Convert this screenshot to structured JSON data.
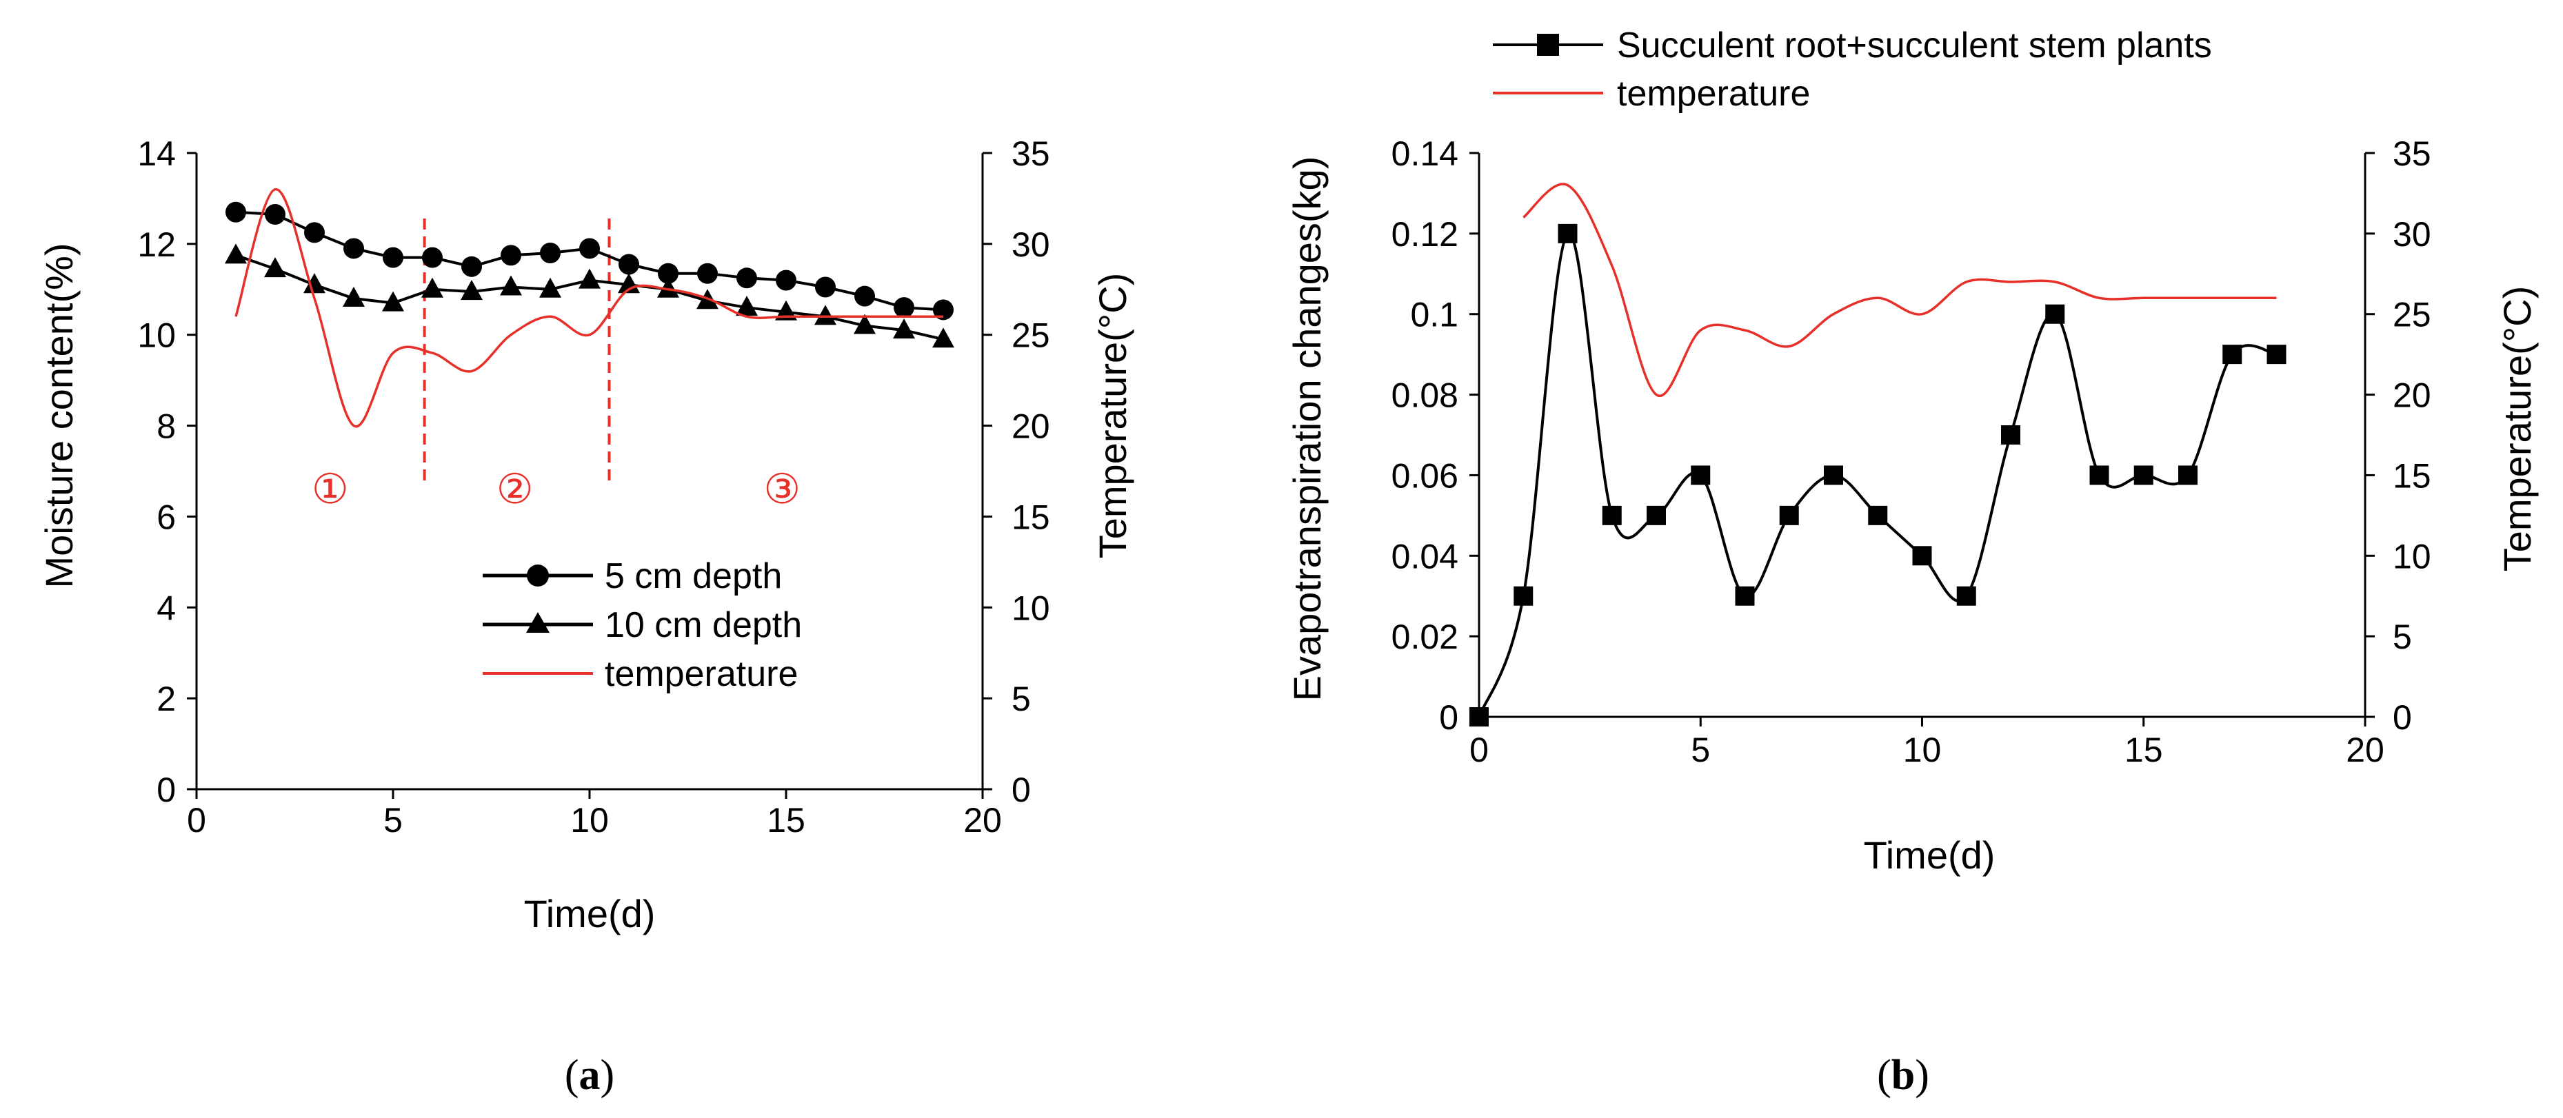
{
  "chart_data": [
    {
      "panel": "(a)",
      "panel_letter": "a",
      "type": "line",
      "title": "",
      "xlabel": "Time(d)",
      "ylabel_left": "Moisture content(%)",
      "ylabel_right": "Temperature(°C)",
      "xlim": [
        0,
        20
      ],
      "ylim_left": [
        0,
        14
      ],
      "ylim_right": [
        0,
        35
      ],
      "xticks": [
        0,
        5,
        10,
        15,
        20
      ],
      "yticks_left": [
        0,
        2,
        4,
        6,
        8,
        10,
        12,
        14
      ],
      "yticks_right": [
        0,
        5,
        10,
        15,
        20,
        25,
        30,
        35
      ],
      "grid": false,
      "legend_position": "center-right",
      "series": [
        {
          "name": "5 cm depth",
          "axis": "left",
          "marker": "circle",
          "color": "#000000",
          "x": [
            1,
            2,
            3,
            4,
            5,
            6,
            7,
            8,
            9,
            10,
            11,
            12,
            13,
            14,
            15,
            16,
            17,
            18,
            19
          ],
          "values": [
            12.7,
            12.65,
            12.25,
            11.9,
            11.7,
            11.7,
            11.5,
            11.75,
            11.8,
            11.9,
            11.55,
            11.35,
            11.35,
            11.25,
            11.2,
            11.05,
            10.85,
            10.6,
            10.55
          ]
        },
        {
          "name": "10 cm depth",
          "axis": "left",
          "marker": "triangle",
          "color": "#000000",
          "x": [
            1,
            2,
            3,
            4,
            5,
            6,
            7,
            8,
            9,
            10,
            11,
            12,
            13,
            14,
            15,
            16,
            17,
            18,
            19
          ],
          "values": [
            11.75,
            11.45,
            11.1,
            10.8,
            10.7,
            11.0,
            10.95,
            11.05,
            11.0,
            11.2,
            11.1,
            11.0,
            10.75,
            10.6,
            10.5,
            10.4,
            10.2,
            10.1,
            9.9
          ]
        },
        {
          "name": "temperature",
          "axis": "right",
          "marker": "none",
          "color": "#e8302a",
          "x": [
            1,
            2,
            3,
            4,
            5,
            6,
            7,
            8,
            9,
            10,
            11,
            12,
            13,
            14,
            15,
            16,
            17,
            18,
            19
          ],
          "values": [
            26,
            33,
            27,
            20,
            24,
            24,
            23,
            25,
            26,
            25,
            27.5,
            27.5,
            27,
            26,
            26,
            26,
            26,
            26,
            26
          ]
        }
      ],
      "annotations": [
        {
          "text": "①",
          "x": 3.4,
          "y": 6.6
        },
        {
          "text": "②",
          "x": 8.1,
          "y": 6.6
        },
        {
          "text": "③",
          "x": 14.9,
          "y": 6.6
        }
      ],
      "dividers_x": [
        5.8,
        10.5
      ],
      "divider_color": "#e8302a"
    },
    {
      "panel": "(b)",
      "panel_letter": "b",
      "type": "line",
      "title": "",
      "xlabel": "Time(d)",
      "ylabel_left": "Evapotranspiration changes(kg)",
      "ylabel_right": "Temperature(°C)",
      "xlim": [
        0,
        20
      ],
      "ylim_left": [
        0,
        0.14
      ],
      "ylim_right": [
        0,
        35
      ],
      "xticks": [
        0,
        5,
        10,
        15,
        20
      ],
      "yticks_left": [
        0,
        0.02,
        0.04,
        0.06,
        0.08,
        0.1,
        0.12,
        0.14
      ],
      "ytick_labels_left": [
        "0",
        "0.02",
        "0.04",
        "0.06",
        "0.08",
        "0.1",
        "0.12",
        "0.14"
      ],
      "yticks_right": [
        0,
        5,
        10,
        15,
        20,
        25,
        30,
        35
      ],
      "grid": false,
      "legend_position": "top",
      "series": [
        {
          "name": "Succulent root+succulent stem plants",
          "axis": "left",
          "marker": "square",
          "color": "#000000",
          "x": [
            0,
            1,
            2,
            3,
            4,
            5,
            6,
            7,
            8,
            9,
            10,
            11,
            12,
            13,
            14,
            15,
            16,
            17,
            18
          ],
          "values": [
            0,
            0.03,
            0.12,
            0.05,
            0.05,
            0.06,
            0.03,
            0.05,
            0.06,
            0.05,
            0.04,
            0.03,
            0.07,
            0.1,
            0.06,
            0.06,
            0.06,
            0.09,
            0.09
          ]
        },
        {
          "name": "temperature",
          "axis": "right",
          "marker": "none",
          "color": "#e8302a",
          "x": [
            1,
            2,
            3,
            4,
            5,
            6,
            7,
            8,
            9,
            10,
            11,
            12,
            13,
            14,
            15,
            16,
            17,
            18
          ],
          "values": [
            31,
            33,
            28,
            20,
            24,
            24,
            23,
            25,
            26,
            25,
            27,
            27,
            27,
            26,
            26,
            26,
            26,
            26
          ]
        }
      ]
    }
  ]
}
